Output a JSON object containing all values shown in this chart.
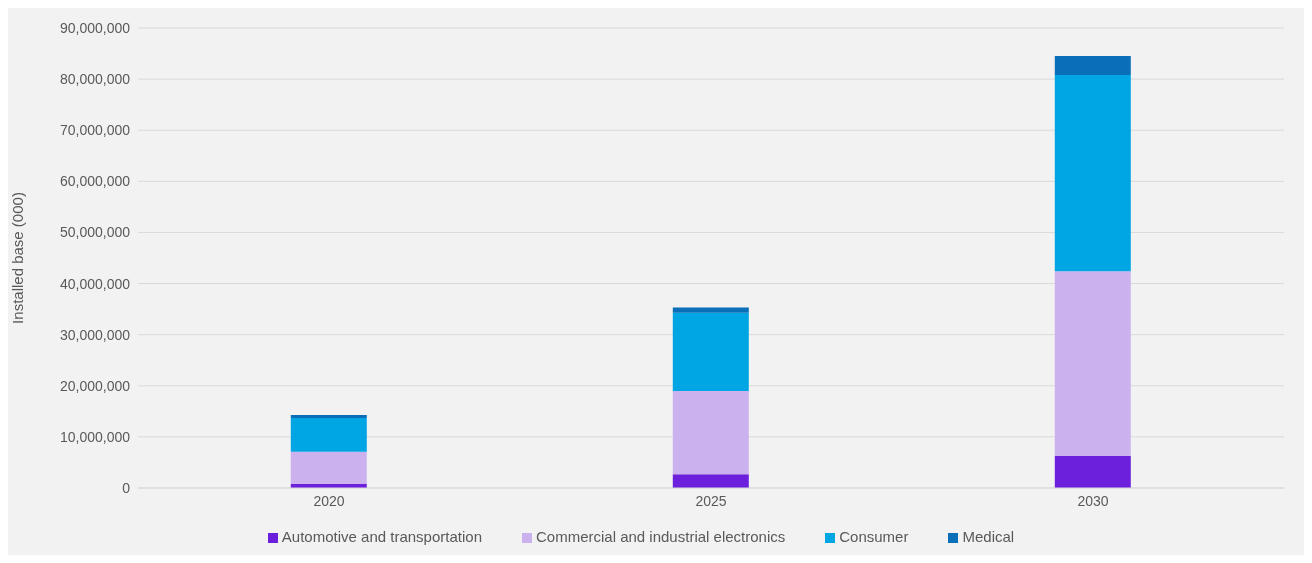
{
  "chart_data": {
    "type": "bar",
    "stacked": true,
    "ylabel": "Installed base (000)",
    "categories": [
      "2020",
      "2025",
      "2030"
    ],
    "series": [
      {
        "name": "Automotive and transportation",
        "color": "#6d20dc",
        "values": [
          800000,
          2700000,
          6300000
        ]
      },
      {
        "name": "Commercial and industrial electronics",
        "color": "#cbb2ef",
        "values": [
          6300000,
          16300000,
          36100000
        ]
      },
      {
        "name": "Consumer",
        "color": "#00a5e3",
        "values": [
          6600000,
          15300000,
          38400000
        ]
      },
      {
        "name": "Medical",
        "color": "#0a6fb8",
        "values": [
          600000,
          1000000,
          3700000
        ]
      }
    ],
    "ylim": [
      0,
      90000000
    ],
    "yticks": [
      0,
      {
        "value": 10000000,
        "label": "10,000,000"
      },
      {
        "value": 20000000,
        "label": "20,000,000"
      },
      {
        "value": 30000000,
        "label": "30,000,000"
      },
      {
        "value": 40000000,
        "label": "40,000,000"
      },
      {
        "value": 50000000,
        "label": "50,000,000"
      },
      {
        "value": 60000000,
        "label": "60,000,000"
      },
      {
        "value": 70000000,
        "label": "70,000,000"
      },
      {
        "value": 80000000,
        "label": "80,000,000"
      },
      {
        "value": 90000000,
        "label": "90,000,000"
      }
    ],
    "grid": "y",
    "legend": "bottom"
  }
}
